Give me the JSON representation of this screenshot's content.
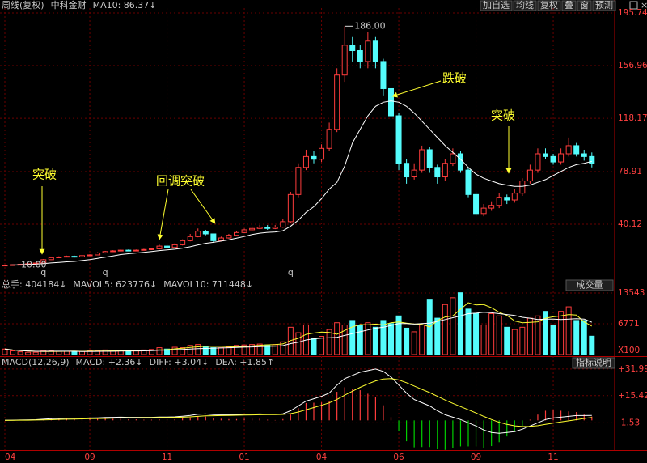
{
  "header": {
    "period": "周线(复权)",
    "name": "中科金财",
    "ma_label": "MA10: 86.37↓",
    "buttons": [
      "加自选",
      "均线",
      "复权",
      "叠",
      "窗",
      "预测"
    ]
  },
  "chart_data": [
    {
      "type": "candlestick",
      "categories": [
        "04",
        null,
        null,
        null,
        null,
        null,
        null,
        null,
        null,
        null,
        null,
        "09",
        null,
        null,
        null,
        null,
        null,
        null,
        null,
        null,
        null,
        "11",
        null,
        null,
        null,
        null,
        null,
        null,
        null,
        null,
        null,
        "01",
        null,
        null,
        null,
        null,
        null,
        null,
        null,
        null,
        null,
        "04",
        null,
        null,
        null,
        null,
        null,
        null,
        null,
        null,
        null,
        "06",
        null,
        null,
        null,
        null,
        null,
        null,
        null,
        null,
        null,
        "09",
        null,
        null,
        null,
        null,
        null,
        null,
        null,
        null,
        null,
        "11",
        null,
        null,
        null,
        null,
        null
      ],
      "open": [
        10,
        10,
        10.3,
        10.6,
        11,
        11.5,
        14,
        15.5,
        16,
        16.5,
        16,
        17,
        17.5,
        19,
        20,
        20.5,
        21,
        20.5,
        21,
        21.5,
        22,
        24,
        23,
        25,
        28,
        31,
        35,
        33,
        28,
        30,
        32,
        34,
        36,
        37,
        38,
        37,
        38,
        42,
        62,
        82,
        90,
        88,
        96,
        110,
        150,
        172,
        168,
        160,
        175,
        160,
        140,
        120,
        85,
        75,
        80,
        95,
        82,
        75,
        85,
        92,
        80,
        62,
        48,
        52,
        54,
        60,
        58,
        63,
        72,
        80,
        92,
        90,
        86,
        92,
        98,
        92,
        90
      ],
      "high": [
        10.2,
        10.5,
        10.8,
        11.2,
        11.8,
        14.5,
        16,
        16.5,
        17,
        17,
        17.5,
        18,
        19.5,
        20.5,
        21,
        21.5,
        21.5,
        21.5,
        22,
        22.5,
        25,
        25,
        26,
        29,
        33,
        37,
        36,
        33,
        31,
        33,
        35,
        37,
        38.5,
        39.5,
        39.5,
        39.5,
        44,
        64,
        85,
        95,
        94,
        99,
        115,
        155,
        186,
        178,
        172,
        182,
        178,
        162,
        142,
        122,
        88,
        85,
        98,
        97,
        84,
        88,
        96,
        94,
        82,
        64,
        55,
        57,
        63,
        62,
        66,
        74,
        84,
        96,
        96,
        92,
        96,
        104,
        100,
        95,
        93
      ],
      "low": [
        9.8,
        9.9,
        10.1,
        10.4,
        10.8,
        11.3,
        13.8,
        15.2,
        15.7,
        15.6,
        15.8,
        16.8,
        17.2,
        18.6,
        19.6,
        20.1,
        20.2,
        20.2,
        20.8,
        21.2,
        21.6,
        22.5,
        22.6,
        24.5,
        27.5,
        30.5,
        32,
        27,
        27.5,
        29.5,
        31.5,
        33.5,
        35.5,
        36.5,
        36,
        36.5,
        37.5,
        41,
        60,
        80,
        85,
        86,
        94,
        108,
        145,
        160,
        155,
        155,
        155,
        135,
        115,
        80,
        70,
        73,
        78,
        78,
        70,
        72,
        83,
        78,
        60,
        46,
        46,
        50,
        52,
        55,
        56,
        61,
        70,
        78,
        88,
        84,
        84,
        90,
        90,
        87,
        82
      ],
      "close": [
        10,
        10.3,
        10.6,
        11,
        11.5,
        14,
        15.5,
        16,
        16.5,
        16,
        17,
        17.5,
        19,
        20,
        20.5,
        21,
        20.5,
        21,
        21.5,
        22,
        24,
        23,
        25,
        28,
        31,
        35,
        33,
        28,
        30,
        32,
        34,
        36,
        37,
        38,
        37,
        38,
        42,
        62,
        82,
        90,
        88,
        96,
        110,
        150,
        172,
        168,
        160,
        175,
        160,
        140,
        120,
        85,
        75,
        80,
        95,
        82,
        75,
        85,
        92,
        80,
        62,
        48,
        52,
        54,
        60,
        58,
        63,
        72,
        80,
        92,
        90,
        86,
        92,
        98,
        92,
        90,
        85
      ],
      "up_color": "#ff3c3c",
      "down_color": "#54fcfc",
      "ma": {
        "color": "#ffffff",
        "values": [
          10,
          10.1,
          10.3,
          10.5,
          10.7,
          11.1,
          11.6,
          12,
          12.4,
          12.7,
          13.4,
          14.1,
          15,
          15.9,
          16.8,
          17.8,
          18.4,
          18.9,
          19.4,
          20,
          20.7,
          21.2,
          21.7,
          22.5,
          23.5,
          24.9,
          26.1,
          26.8,
          27.7,
          28.7,
          29.9,
          31.1,
          32.5,
          33.5,
          34.1,
          34.4,
          35.3,
          38.7,
          43.1,
          48.9,
          53,
          59,
          66,
          71,
          83,
          100,
          110,
          120,
          127,
          130,
          131,
          130,
          127,
          122,
          116,
          110,
          104,
          98,
          93,
          88,
          82,
          77,
          74,
          72,
          70,
          69,
          68,
          68,
          69,
          71,
          73,
          76,
          79,
          82,
          84,
          85,
          86.37
        ]
      },
      "ylim": [
        0.8,
        199.3
      ],
      "yticks": [
        195.74,
        156.96,
        118.17,
        78.91,
        40.12
      ],
      "grid": true,
      "high_label": {
        "value": 186,
        "label": "186.00"
      },
      "low_label": {
        "value": 10,
        "label": "10.00"
      },
      "events": [
        {
          "label": "q",
          "index": 5
        },
        {
          "label": "q",
          "index": 13
        },
        {
          "label": "q",
          "index": 37
        }
      ],
      "annotations": [
        "突破",
        "回调突破",
        "跌破",
        "突破"
      ]
    },
    {
      "type": "volume",
      "title": "总手: 404184↓",
      "button": "成交量",
      "unit_label": "X100",
      "values": [
        1200,
        800,
        600,
        500,
        500,
        900,
        800,
        700,
        700,
        600,
        700,
        900,
        800,
        1000,
        900,
        900,
        800,
        900,
        1000,
        1100,
        1500,
        1200,
        1600,
        1500,
        2000,
        2200,
        1800,
        1500,
        1500,
        1600,
        2000,
        2100,
        2200,
        2300,
        2100,
        2200,
        2800,
        6000,
        4800,
        6500,
        3500,
        4000,
        5500,
        7000,
        6500,
        7500,
        6500,
        7000,
        6000,
        7500,
        6800,
        8500,
        5800,
        5000,
        6500,
        12000,
        8000,
        11000,
        12500,
        13600,
        10000,
        9000,
        6500,
        9000,
        8500,
        6000,
        5500,
        6000,
        8000,
        8500,
        9500,
        6500,
        9500,
        10500,
        7500,
        7500,
        4041.84
      ],
      "series": [
        {
          "name": "MAVOL5: 623776↓",
          "color": "#ffff30",
          "values": [
            1200,
            1000,
            870,
            780,
            720,
            660,
            680,
            700,
            720,
            740,
            700,
            740,
            760,
            780,
            800,
            860,
            860,
            860,
            900,
            940,
            1040,
            1060,
            1240,
            1380,
            1560,
            1700,
            1820,
            1800,
            1800,
            1720,
            1680,
            1740,
            1880,
            2040,
            2140,
            2180,
            2340,
            3080,
            3580,
            4440,
            4720,
            4960,
            4860,
            4460,
            5300,
            6100,
            6600,
            6560,
            6700,
            6500,
            7000,
            7160,
            6920,
            6720,
            6640,
            6080,
            7460,
            8260,
            8500,
            10000,
            11400,
            10900,
            11000,
            10300,
            9300,
            8600,
            7400,
            7000,
            7100,
            7200,
            8000,
            8300,
            8500,
            8800,
            8700,
            7200,
            6237.76
          ]
        },
        {
          "name": "MAVOL10: 711448↓",
          "color": "#ffffff",
          "values": [
            1200,
            1000,
            870,
            780,
            720,
            720,
            730,
            730,
            730,
            720,
            670,
            680,
            700,
            710,
            720,
            760,
            780,
            790,
            810,
            840,
            920,
            960,
            1050,
            1110,
            1190,
            1280,
            1340,
            1400,
            1450,
            1500,
            1560,
            1620,
            1680,
            1740,
            1800,
            1840,
            1960,
            2400,
            2700,
            3200,
            3450,
            3600,
            3700,
            3800,
            4200,
            4600,
            5000,
            5400,
            5800,
            6000,
            6400,
            6800,
            6800,
            6700,
            6800,
            6900,
            7300,
            7700,
            8100,
            8500,
            9000,
            9100,
            9300,
            9200,
            9000,
            8800,
            8600,
            8200,
            8000,
            7700,
            7800,
            7800,
            7700,
            7800,
            7900,
            7800,
            7114.48
          ]
        }
      ],
      "ylim": [
        0,
        16572
      ],
      "yticks": [
        13543,
        6771
      ]
    },
    {
      "type": "macd",
      "title": "MACD(12,26,9)",
      "button": "指标说明",
      "histogram": {
        "name": "MACD: +2.36↓",
        "up_color": "#ff3c3c",
        "down_color": "#00d000",
        "values": [
          0,
          0.2,
          0.2,
          0.4,
          0.4,
          0.8,
          1.2,
          1.2,
          1.2,
          1,
          1,
          1,
          1,
          1.2,
          1,
          1,
          0.6,
          0.6,
          0.4,
          0.4,
          0.6,
          0.6,
          0.6,
          1.2,
          1.8,
          2.6,
          2.4,
          1.4,
          1,
          0.8,
          0.8,
          1,
          1,
          1,
          0.4,
          0.2,
          0.8,
          3.6,
          7.6,
          10.8,
          11,
          11.2,
          12.2,
          17.8,
          20.6,
          19.6,
          18.8,
          16.6,
          14.8,
          9.4,
          2,
          -6.4,
          -13,
          -16.8,
          -16.6,
          -16.6,
          -18,
          -18.4,
          -17.2,
          -16.2,
          -16.2,
          -16.2,
          -17,
          -16,
          -13.6,
          -10,
          -7.2,
          -3.4,
          0.4,
          3.6,
          6,
          6.4,
          6,
          5.6,
          5.2,
          3.6,
          2.36
        ]
      },
      "series": [
        {
          "name": "DIFF: +3.04↓",
          "color": "#ffffff",
          "values": [
            0,
            0.1,
            0.2,
            0.3,
            0.4,
            0.7,
            1,
            1.2,
            1.3,
            1.3,
            1.4,
            1.5,
            1.6,
            1.8,
            1.9,
            2,
            1.9,
            1.9,
            1.9,
            1.9,
            2.1,
            2.1,
            2.2,
            2.6,
            3.1,
            3.8,
            4,
            3.6,
            3.5,
            3.5,
            3.6,
            3.8,
            3.9,
            4,
            3.8,
            3.7,
            4.1,
            6,
            9,
            12,
            13.5,
            15,
            17,
            22,
            26,
            28,
            30,
            31,
            32,
            30.5,
            27,
            22,
            17,
            13,
            11,
            9,
            6,
            3.5,
            2,
            0.5,
            -1.5,
            -3.5,
            -6,
            -7.5,
            -8,
            -7.5,
            -7,
            -5.5,
            -3.5,
            -1.5,
            0.5,
            1.5,
            2,
            2.5,
            3,
            3,
            3.04
          ]
        },
        {
          "name": "DEA: +1.85↑",
          "color": "#ffff30",
          "values": [
            0,
            0,
            0.1,
            0.1,
            0.2,
            0.3,
            0.4,
            0.6,
            0.7,
            0.8,
            0.9,
            1,
            1.1,
            1.2,
            1.4,
            1.5,
            1.6,
            1.6,
            1.7,
            1.7,
            1.8,
            1.8,
            1.9,
            2,
            2.2,
            2.5,
            2.8,
            2.9,
            3,
            3.1,
            3.2,
            3.3,
            3.4,
            3.5,
            3.6,
            3.6,
            3.7,
            4.2,
            5.2,
            6.6,
            8,
            9.4,
            10.9,
            13.1,
            15.7,
            18.2,
            20.6,
            22.7,
            24.6,
            25.8,
            26,
            25.2,
            23.5,
            21.4,
            19.3,
            17.3,
            15,
            12.7,
            10.6,
            8.6,
            6.6,
            4.6,
            2.5,
            0.5,
            -1.2,
            -2.5,
            -3.4,
            -3.8,
            -3.7,
            -3.3,
            -2.5,
            -1.7,
            -1,
            -0.3,
            0.4,
            1.2,
            1.85
          ]
        }
      ],
      "ylim": [
        -18.5,
        37.5
      ],
      "yticks": [
        {
          "value": 31.99,
          "label": "+31.99"
        },
        {
          "value": 15.42,
          "label": "+15.42"
        },
        {
          "value": -1.53,
          "label": "-1.53"
        }
      ]
    }
  ]
}
